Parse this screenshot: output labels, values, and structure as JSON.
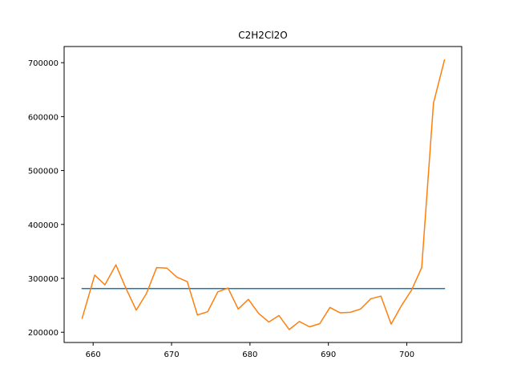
{
  "chart_data": {
    "type": "line",
    "title": "C2H2Cl2O",
    "xlabel": "",
    "ylabel": "",
    "xlim": [
      656.3,
      707.0
    ],
    "ylim": [
      181000,
      730000
    ],
    "xticks": [
      660,
      670,
      680,
      690,
      700
    ],
    "yticks": [
      200000,
      300000,
      400000,
      500000,
      600000,
      700000
    ],
    "grid": false,
    "series": [
      {
        "color": "#1f77b4",
        "x": [
          658.6,
          704.8
        ],
        "y": [
          281000,
          281000
        ]
      },
      {
        "color": "#ff7f0e",
        "x": [
          658.6,
          660.2,
          661.5,
          662.9,
          664.2,
          665.5,
          666.8,
          668.1,
          669.4,
          670.7,
          672.0,
          673.3,
          674.6,
          675.9,
          677.2,
          678.5,
          679.8,
          681.1,
          682.4,
          683.7,
          685.0,
          686.3,
          687.6,
          688.9,
          690.2,
          691.5,
          692.8,
          694.1,
          695.4,
          696.7,
          698.0,
          699.3,
          700.6,
          701.9,
          703.4,
          704.8
        ],
        "y": [
          226000,
          306000,
          288000,
          325000,
          281000,
          241000,
          272000,
          320000,
          319000,
          302000,
          294000,
          232000,
          238000,
          275000,
          282000,
          243000,
          261000,
          235000,
          219000,
          231000,
          205000,
          220000,
          210000,
          216000,
          246000,
          236000,
          237000,
          243000,
          262000,
          267000,
          215000,
          249000,
          278000,
          320000,
          625000,
          705000
        ]
      }
    ]
  }
}
